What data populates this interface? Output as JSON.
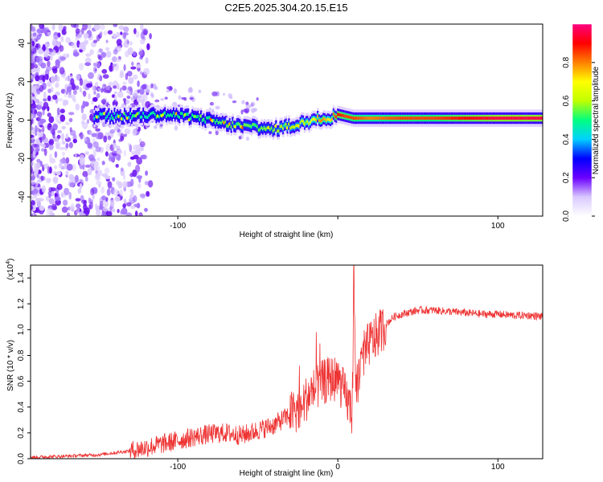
{
  "title": "C2E5.2025.304.20.15.E15",
  "chart_data": [
    {
      "type": "heatmap",
      "xlabel": "Height of straight line (km)",
      "ylabel": "Frequency (Hz)",
      "xlim": [
        -192,
        128
      ],
      "ylim": [
        -50,
        50
      ],
      "xticks": [
        -100,
        0,
        100
      ],
      "xtick_labels": [
        "-100",
        "",
        "100"
      ],
      "yticks": [
        -40,
        -20,
        0,
        20,
        40
      ],
      "ytick_labels": [
        "-40",
        "-20",
        "0",
        "20",
        "40"
      ],
      "colorbar": {
        "label": "Normalized spectral amplitude",
        "range": [
          0,
          1
        ],
        "ticks": [
          0.0,
          0.2,
          0.4,
          0.6,
          0.8
        ],
        "tick_labels": [
          "0.0",
          "0.2",
          "0.4",
          "0.6",
          "0.8"
        ],
        "colormap": [
          "#ffffff",
          "#d9c8ff",
          "#6a00ff",
          "#0000ff",
          "#00d0ff",
          "#00ff80",
          "#c0ff00",
          "#ffff00",
          "#ff8000",
          "#ff0000",
          "#ff0080"
        ]
      },
      "ridge": {
        "x": [
          -150,
          -130,
          -110,
          -95,
          -80,
          -70,
          -60,
          -50,
          -42,
          -35,
          -28,
          -20,
          -15,
          -10,
          -5,
          0,
          5,
          10,
          20,
          40,
          60,
          80,
          100,
          128
        ],
        "frequency": [
          2,
          2,
          3,
          2,
          0,
          -2,
          -3,
          -4,
          -5,
          -4,
          -3,
          -1,
          0,
          1,
          1,
          3,
          2,
          1,
          1,
          1,
          1,
          1,
          1,
          1
        ],
        "amplitude": [
          0.45,
          0.45,
          0.5,
          0.5,
          0.5,
          0.55,
          0.55,
          0.55,
          0.55,
          0.6,
          0.6,
          0.65,
          0.7,
          0.8,
          0.7,
          0.9,
          0.85,
          0.85,
          0.8,
          0.85,
          0.85,
          0.9,
          0.95,
          0.95
        ]
      }
    },
    {
      "type": "line",
      "xlabel": "Height of straight line (km)",
      "ylabel": "SNR (10 * v/v)",
      "scale_note": "(x10",
      "scale_exponent": "4",
      "xlim": [
        -192,
        128
      ],
      "ylim": [
        0,
        1.5
      ],
      "xticks": [
        -100,
        0,
        100
      ],
      "xtick_labels": [
        "-100",
        "0",
        "100"
      ],
      "yticks": [
        0.0,
        0.2,
        0.4,
        0.6,
        0.8,
        1.0,
        1.2,
        1.4
      ],
      "ytick_labels": [
        "0.0",
        "0.2",
        "0.4",
        "0.6",
        "0.8",
        "1.0",
        "1.2",
        "1.4"
      ],
      "series": [
        {
          "name": "SNR",
          "color": "#ee3333",
          "x": [
            -192,
            -170,
            -150,
            -130,
            -115,
            -100,
            -90,
            -80,
            -70,
            -60,
            -50,
            -40,
            -30,
            -22,
            -18,
            -12,
            -8,
            -4,
            0,
            5,
            9,
            10,
            11,
            15,
            20,
            25,
            30,
            35,
            40,
            50,
            60,
            70,
            80,
            90,
            100,
            110,
            120,
            128
          ],
          "values": [
            0.01,
            0.02,
            0.03,
            0.06,
            0.1,
            0.14,
            0.17,
            0.19,
            0.2,
            0.18,
            0.22,
            0.26,
            0.34,
            0.42,
            0.5,
            0.56,
            0.6,
            0.62,
            0.62,
            0.48,
            0.35,
            1.47,
            0.5,
            0.78,
            0.9,
            0.96,
            1.04,
            1.1,
            1.12,
            1.15,
            1.15,
            1.14,
            1.13,
            1.12,
            1.12,
            1.11,
            1.11,
            1.1
          ]
        }
      ]
    }
  ]
}
